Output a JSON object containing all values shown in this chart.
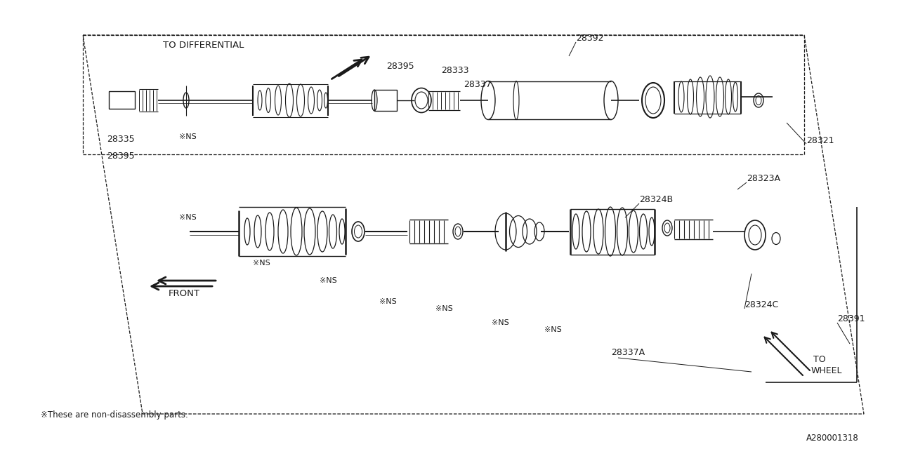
{
  "bg_color": "#ffffff",
  "line_color": "#1a1a1a",
  "fig_width": 12.8,
  "fig_height": 6.4,
  "diagram_id": "A280001318",
  "footnote": "※These are non-disassembly parts.",
  "xlim": [
    0,
    1280
  ],
  "ylim": [
    0,
    640
  ]
}
